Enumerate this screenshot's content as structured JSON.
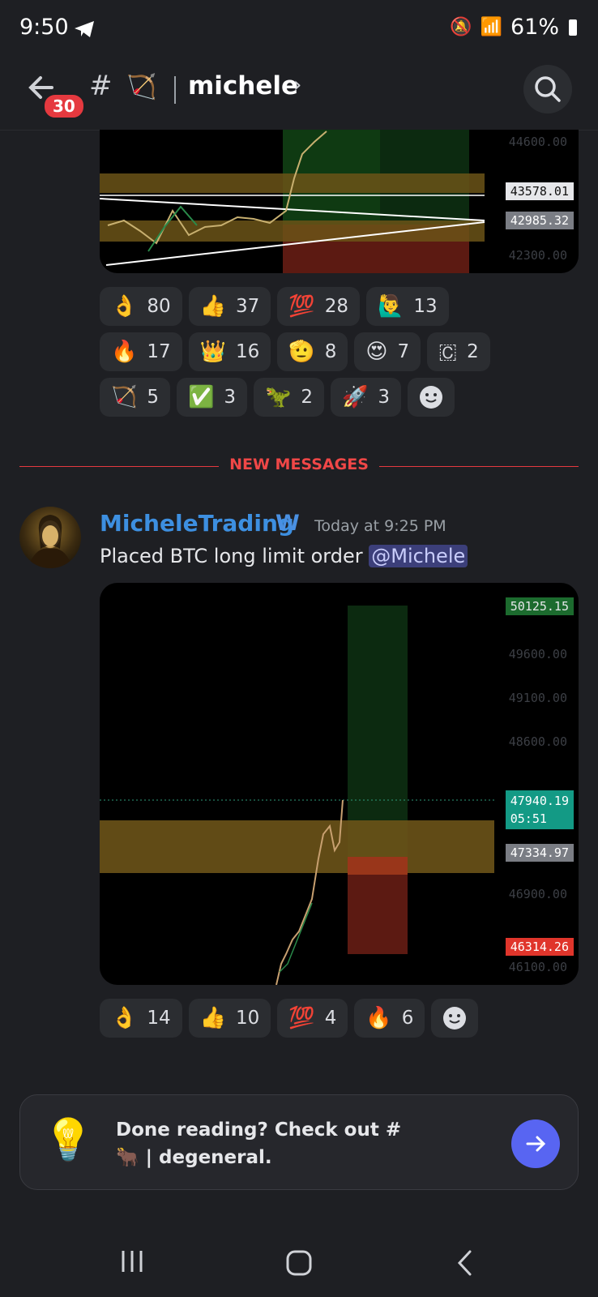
{
  "status_bar": {
    "time": "9:50",
    "battery": "61%"
  },
  "header": {
    "unread_count": "30",
    "hash_symbol": "#",
    "channel_name": "michele"
  },
  "chart1": {
    "axis_labels": [
      "44600.00",
      "42300.00"
    ],
    "price_tags": [
      {
        "value": "43578.01",
        "color": "#e6e7ea"
      },
      {
        "value": "42985.32",
        "color": "#7a7d84"
      }
    ]
  },
  "reactions1": [
    {
      "emoji": "👌",
      "count": "80"
    },
    {
      "emoji": "👍",
      "count": "37"
    },
    {
      "emoji": "💯",
      "count": "28"
    },
    {
      "emoji": "🙋‍♂️",
      "count": "13"
    },
    {
      "emoji": "🔥",
      "count": "17"
    },
    {
      "emoji": "👑",
      "count": "16"
    },
    {
      "emoji": "🫡",
      "count": "8"
    },
    {
      "emoji": "😍",
      "count": "7"
    },
    {
      "emoji": "🇨",
      "count": "2"
    },
    {
      "emoji": "🏹",
      "count": "5"
    },
    {
      "emoji": "✅",
      "count": "3"
    },
    {
      "emoji": "🦖",
      "count": "2"
    },
    {
      "emoji": "🚀",
      "count": "3"
    }
  ],
  "new_messages_label": "NEW MESSAGES",
  "message": {
    "author": "MicheleTrading",
    "badge": "W",
    "timestamp": "Today at 9:25 PM",
    "text": "Placed BTC long limit order",
    "mention": "@Michele"
  },
  "chart2": {
    "axis_labels": [
      "49600.00",
      "49100.00",
      "48600.00",
      "46900.00",
      "46100.00"
    ],
    "tp_tag": "50125.15",
    "current_tag": "47940.19",
    "countdown": "05:51",
    "entry_tag": "47334.97",
    "sl_tag": "46314.26"
  },
  "reactions2": [
    {
      "emoji": "👌",
      "count": "14"
    },
    {
      "emoji": "👍",
      "count": "10"
    },
    {
      "emoji": "💯",
      "count": "4"
    },
    {
      "emoji": "🔥",
      "count": "6"
    }
  ],
  "prompt_card": {
    "text": "Done reading? Check out #🐂 | degeneral."
  }
}
